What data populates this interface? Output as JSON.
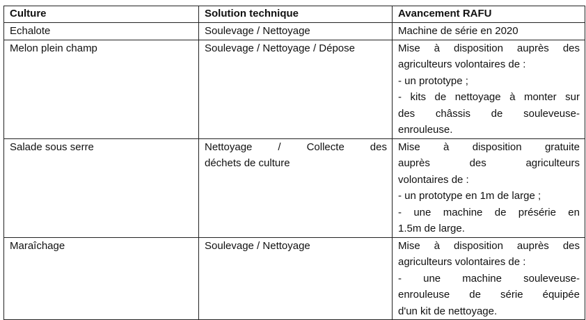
{
  "headers": [
    "Culture",
    "Solution technique",
    "Avancement RAFU"
  ],
  "rows": [
    {
      "culture": "Echalote",
      "solution": [
        "Soulevage / Nettoyage"
      ],
      "avancement": [
        "Machine de série en 2020"
      ]
    },
    {
      "culture": "Melon plein champ",
      "solution": [
        "Soulevage / Nettoyage / Dépose"
      ],
      "avancement": [
        "Mise à disposition auprès des",
        "agriculteurs volontaires de :",
        "- un prototype ;",
        "- kits de nettoyage à monter sur",
        "des châssis de souleveuse-",
        "enrouleuse."
      ]
    },
    {
      "culture": "Salade sous serre",
      "solution": [
        "Nettoyage / Collecte des",
        "déchets de culture"
      ],
      "avancement": [
        "Mise à disposition gratuite",
        "auprès des agriculteurs",
        "volontaires de :",
        "- un prototype en 1m de large ;",
        "- une machine de présérie en",
        "1.5m de large."
      ]
    },
    {
      "culture": "Maraîchage",
      "solution": [
        "Soulevage / Nettoyage"
      ],
      "avancement": [
        "Mise à disposition auprès des",
        "agriculteurs volontaires de :",
        "- une machine souleveuse-",
        "enrouleuse de série équipée",
        "d'un kit de nettoyage."
      ]
    }
  ]
}
